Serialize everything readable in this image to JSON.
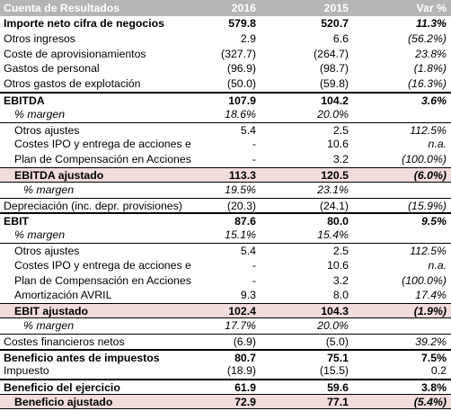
{
  "header": {
    "label": "Cuenta de Resultados",
    "y1": "2016",
    "y2": "2015",
    "var": "Var %"
  },
  "rows": [
    {
      "label": "Importe neto cifra de negocios",
      "v1": "579.8",
      "v2": "520.7",
      "var": "11.3%"
    },
    {
      "label": "Otros ingresos",
      "v1": "2.9",
      "v2": "6.6",
      "var": "(56.2%)"
    },
    {
      "label": "Coste de aprovisionamientos",
      "v1": "(327.7)",
      "v2": "(264.7)",
      "var": "23.8%"
    },
    {
      "label": "Gastos de personal",
      "v1": "(96.9)",
      "v2": "(98.7)",
      "var": "(1.8%)"
    },
    {
      "label": "Otros gastos de explotación",
      "v1": "(50.0)",
      "v2": "(59.8)",
      "var": "(16.3%)"
    },
    {
      "label": "EBITDA",
      "v1": "107.9",
      "v2": "104.2",
      "var": "3.6%"
    },
    {
      "label": "% margen",
      "v1": "18.6%",
      "v2": "20.0%",
      "var": ""
    },
    {
      "label": "Otros ajustes",
      "v1": "5.4",
      "v2": "2.5",
      "var": "112.5%"
    },
    {
      "label": "Costes IPO y entrega de acciones e",
      "v1": "-",
      "v2": "10.6",
      "var": "n.a."
    },
    {
      "label": "Plan de Compensación en Acciones",
      "v1": "-",
      "v2": "3.2",
      "var": "(100.0%)"
    },
    {
      "label": "EBITDA ajustado",
      "v1": "113.3",
      "v2": "120.5",
      "var": "(6.0%)"
    },
    {
      "label": "% margen",
      "v1": "19.5%",
      "v2": "23.1%",
      "var": ""
    },
    {
      "label": "Depreciación (inc. depr. provisiones)",
      "v1": "(20.3)",
      "v2": "(24.1)",
      "var": "(15.9%)"
    },
    {
      "label": "EBIT",
      "v1": "87.6",
      "v2": "80.0",
      "var": "9.5%"
    },
    {
      "label": "% margen",
      "v1": "15.1%",
      "v2": "15.4%",
      "var": ""
    },
    {
      "label": "Otros ajustes",
      "v1": "5.4",
      "v2": "2.5",
      "var": "112.5%"
    },
    {
      "label": "Costes IPO y entrega de acciones e",
      "v1": "-",
      "v2": "10.6",
      "var": "n.a."
    },
    {
      "label": "Plan de Compensación en Acciones",
      "v1": "-",
      "v2": "3.2",
      "var": "(100.0%)"
    },
    {
      "label": "Amortización AVRIL",
      "v1": "9.3",
      "v2": "8.0",
      "var": "17.4%"
    },
    {
      "label": "EBIT ajustado",
      "v1": "102.4",
      "v2": "104.3",
      "var": "(1.9%)"
    },
    {
      "label": "% margen",
      "v1": "17.7%",
      "v2": "20.0%",
      "var": ""
    },
    {
      "label": "Costes financieros netos",
      "v1": "(6.9)",
      "v2": "(5.0)",
      "var": "39.2%"
    },
    {
      "label": "Beneficio antes de impuestos",
      "v1": "80.7",
      "v2": "75.1",
      "var": "7.5%"
    },
    {
      "label": "Impuesto",
      "v1": "(18.9)",
      "v2": "(15.5)",
      "var": "0.2"
    },
    {
      "label": "Beneficio del ejercicio",
      "v1": "61.9",
      "v2": "59.6",
      "var": "3.8%"
    },
    {
      "label": "Beneficio ajustado",
      "v1": "72.9",
      "v2": "77.1",
      "var": "(5.4%)"
    }
  ]
}
